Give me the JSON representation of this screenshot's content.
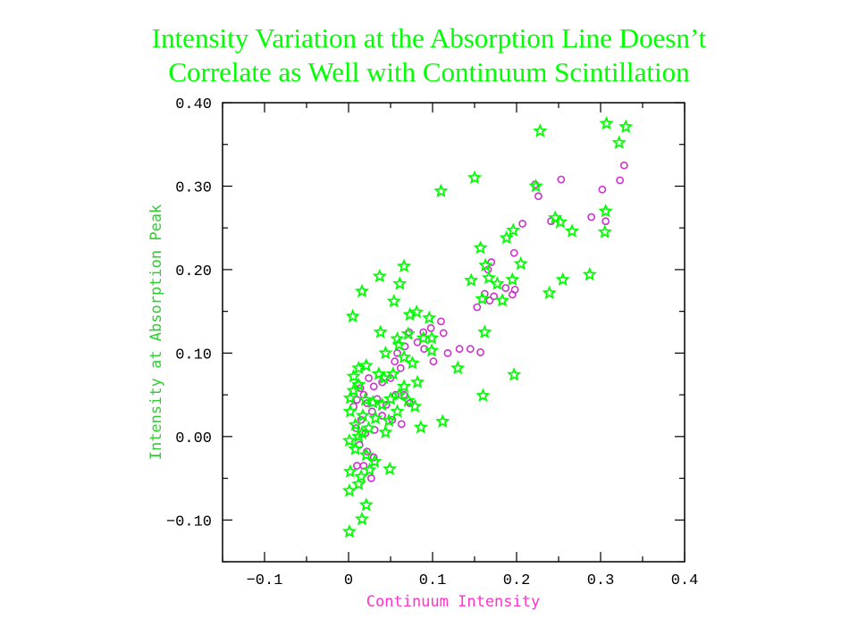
{
  "title": {
    "line1": "Intensity Variation at the Absorption Line Doesn’t",
    "line2": "Correlate as Well with Continuum Scintillation"
  },
  "colors": {
    "title": "#00ff00",
    "stars": "#00ff00",
    "circles": "#cc33cc",
    "xlabel": "#ff33cc",
    "ylabel": "#33cc33",
    "frame": "#000000"
  },
  "chart_data": {
    "type": "scatter",
    "title": "",
    "xlabel": "Continuum Intensity",
    "ylabel": "Intensity at Absorption Peak",
    "xlim": [
      -0.15,
      0.4
    ],
    "ylim": [
      -0.15,
      0.4
    ],
    "xticks": [
      -0.1,
      0,
      0.1,
      0.2,
      0.3,
      0.4
    ],
    "xtick_labels": [
      "−0.1",
      "0",
      "0.1",
      "0.2",
      "0.3",
      "0.4"
    ],
    "yticks": [
      -0.1,
      0,
      0.1,
      0.2,
      0.3,
      0.4
    ],
    "ytick_labels": [
      "−0.10",
      "0.00",
      "0.10",
      "0.20",
      "0.30",
      "0.40"
    ],
    "grid": false,
    "series": [
      {
        "marker": "star",
        "points": [
          [
            0.307,
            0.375
          ],
          [
            0.33,
            0.371
          ],
          [
            0.228,
            0.366
          ],
          [
            0.322,
            0.352
          ],
          [
            0.15,
            0.31
          ],
          [
            0.11,
            0.294
          ],
          [
            0.223,
            0.3
          ],
          [
            0.306,
            0.27
          ],
          [
            0.246,
            0.262
          ],
          [
            0.252,
            0.257
          ],
          [
            0.266,
            0.246
          ],
          [
            0.305,
            0.245
          ],
          [
            0.196,
            0.247
          ],
          [
            0.188,
            0.238
          ],
          [
            0.157,
            0.226
          ],
          [
            0.205,
            0.207
          ],
          [
            0.163,
            0.205
          ],
          [
            0.167,
            0.19
          ],
          [
            0.177,
            0.183
          ],
          [
            0.146,
            0.187
          ],
          [
            0.195,
            0.188
          ],
          [
            0.287,
            0.194
          ],
          [
            0.255,
            0.188
          ],
          [
            0.239,
            0.172
          ],
          [
            0.183,
            0.163
          ],
          [
            0.159,
            0.165
          ],
          [
            0.066,
            0.204
          ],
          [
            0.037,
            0.192
          ],
          [
            0.016,
            0.174
          ],
          [
            0.061,
            0.183
          ],
          [
            0.005,
            0.144
          ],
          [
            0.054,
            0.162
          ],
          [
            0.073,
            0.146
          ],
          [
            0.081,
            0.149
          ],
          [
            0.096,
            0.142
          ],
          [
            0.162,
            0.125
          ],
          [
            0.038,
            0.125
          ],
          [
            0.058,
            0.117
          ],
          [
            0.071,
            0.123
          ],
          [
            0.089,
            0.118
          ],
          [
            0.099,
            0.118
          ],
          [
            0.099,
            0.103
          ],
          [
            0.06,
            0.11
          ],
          [
            0.044,
            0.1
          ],
          [
            0.066,
            0.095
          ],
          [
            0.076,
            0.088
          ],
          [
            0.13,
            0.082
          ],
          [
            0.021,
            0.085
          ],
          [
            0.012,
            0.082
          ],
          [
            0.006,
            0.072
          ],
          [
            0.036,
            0.075
          ],
          [
            0.042,
            0.07
          ],
          [
            0.053,
            0.075
          ],
          [
            0.082,
            0.065
          ],
          [
            0.066,
            0.06
          ],
          [
            0.006,
            0.055
          ],
          [
            0.012,
            0.062
          ],
          [
            0.002,
            0.046
          ],
          [
            0.02,
            0.044
          ],
          [
            0.029,
            0.041
          ],
          [
            0.04,
            0.038
          ],
          [
            0.05,
            0.045
          ],
          [
            0.06,
            0.05
          ],
          [
            0.071,
            0.043
          ],
          [
            0.079,
            0.036
          ],
          [
            0.002,
            0.03
          ],
          [
            0.017,
            0.025
          ],
          [
            0.032,
            0.022
          ],
          [
            0.048,
            0.019
          ],
          [
            0.058,
            0.03
          ],
          [
            0.008,
            0.014
          ],
          [
            0.024,
            0.01
          ],
          [
            0.044,
            0.005
          ],
          [
            0.012,
            0.0
          ],
          [
            0.016,
            0.004
          ],
          [
            0.001,
            -0.005
          ],
          [
            0.008,
            -0.015
          ],
          [
            0.021,
            -0.022
          ],
          [
            0.031,
            -0.03
          ],
          [
            0.002,
            -0.042
          ],
          [
            0.015,
            -0.048
          ],
          [
            0.025,
            -0.04
          ],
          [
            0.049,
            -0.039
          ],
          [
            0.001,
            -0.065
          ],
          [
            0.012,
            -0.057
          ],
          [
            0.021,
            -0.082
          ],
          [
            0.016,
            -0.099
          ],
          [
            0.001,
            -0.114
          ],
          [
            0.16,
            0.049
          ],
          [
            0.197,
            0.074
          ],
          [
            0.112,
            0.018
          ],
          [
            0.086,
            0.011
          ]
        ]
      },
      {
        "marker": "circle",
        "points": [
          [
            0.328,
            0.325
          ],
          [
            0.323,
            0.307
          ],
          [
            0.302,
            0.296
          ],
          [
            0.253,
            0.308
          ],
          [
            0.222,
            0.302
          ],
          [
            0.226,
            0.288
          ],
          [
            0.241,
            0.258
          ],
          [
            0.207,
            0.255
          ],
          [
            0.289,
            0.263
          ],
          [
            0.306,
            0.258
          ],
          [
            0.197,
            0.22
          ],
          [
            0.17,
            0.209
          ],
          [
            0.166,
            0.2
          ],
          [
            0.187,
            0.178
          ],
          [
            0.198,
            0.176
          ],
          [
            0.195,
            0.17
          ],
          [
            0.173,
            0.168
          ],
          [
            0.162,
            0.171
          ],
          [
            0.153,
            0.155
          ],
          [
            0.168,
            0.163
          ],
          [
            0.132,
            0.105
          ],
          [
            0.145,
            0.105
          ],
          [
            0.157,
            0.101
          ],
          [
            0.118,
            0.1
          ],
          [
            0.11,
            0.138
          ],
          [
            0.113,
            0.124
          ],
          [
            0.098,
            0.13
          ],
          [
            0.089,
            0.125
          ],
          [
            0.072,
            0.125
          ],
          [
            0.082,
            0.113
          ],
          [
            0.09,
            0.105
          ],
          [
            0.101,
            0.09
          ],
          [
            0.067,
            0.108
          ],
          [
            0.058,
            0.1
          ],
          [
            0.055,
            0.09
          ],
          [
            0.062,
            0.082
          ],
          [
            0.05,
            0.07
          ],
          [
            0.04,
            0.065
          ],
          [
            0.03,
            0.06
          ],
          [
            0.024,
            0.07
          ],
          [
            0.014,
            0.058
          ],
          [
            0.018,
            0.05
          ],
          [
            0.01,
            0.044
          ],
          [
            0.022,
            0.04
          ],
          [
            0.006,
            0.036
          ],
          [
            0.034,
            0.045
          ],
          [
            0.045,
            0.038
          ],
          [
            0.056,
            0.05
          ],
          [
            0.066,
            0.05
          ],
          [
            0.073,
            0.04
          ],
          [
            0.028,
            0.03
          ],
          [
            0.04,
            0.025
          ],
          [
            0.052,
            0.02
          ],
          [
            0.063,
            0.015
          ],
          [
            0.015,
            0.02
          ],
          [
            0.009,
            0.01
          ],
          [
            0.02,
            0.004
          ],
          [
            0.031,
            0.008
          ],
          [
            0.013,
            -0.01
          ],
          [
            0.022,
            -0.018
          ],
          [
            0.03,
            -0.025
          ],
          [
            0.018,
            -0.035
          ],
          [
            0.01,
            -0.035
          ],
          [
            0.027,
            -0.05
          ]
        ]
      }
    ]
  }
}
